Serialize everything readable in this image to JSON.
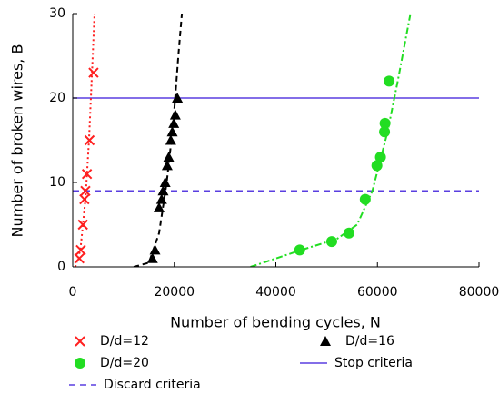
{
  "chart_data": {
    "type": "scatter",
    "xlabel": "Number of bending cycles, N",
    "ylabel": "Number of broken wires, B",
    "xlim": [
      0,
      80000
    ],
    "xticks": [
      0,
      20000,
      40000,
      60000,
      80000
    ],
    "ylim": [
      0,
      30
    ],
    "yticks": [
      0,
      10,
      20,
      30
    ],
    "grid": false,
    "series": [
      {
        "name": "D/d=12",
        "color": "#ff2020",
        "marker": "x",
        "x": [
          1300,
          1600,
          2000,
          2300,
          2500,
          2800,
          3300,
          4100
        ],
        "values": [
          1,
          2,
          5,
          8,
          9,
          11,
          15,
          23
        ]
      },
      {
        "name": "D/d=16",
        "color": "#000000",
        "marker": "triangle",
        "x": [
          15700,
          16200,
          17000,
          17500,
          17800,
          18200,
          18600,
          18900,
          19300,
          19600,
          19900,
          20200,
          20600
        ],
        "values": [
          1,
          2,
          7,
          8,
          9,
          10,
          12,
          13,
          15,
          16,
          17,
          18,
          20
        ]
      },
      {
        "name": "D/d=20",
        "color": "#22dd22",
        "marker": "circle",
        "x": [
          44700,
          51000,
          54400,
          57600,
          59900,
          60600,
          61400,
          61500,
          62300
        ],
        "values": [
          2,
          3,
          4,
          8,
          12,
          13,
          16,
          17,
          22
        ]
      }
    ],
    "fits": [
      {
        "color": "#ff2020",
        "dash": "2 3",
        "x": [
          500,
          1500,
          2500,
          3200,
          3800,
          4300
        ],
        "values": [
          0,
          2,
          8,
          15,
          23,
          30
        ]
      },
      {
        "color": "#000000",
        "dash": "6 4",
        "x": [
          12000,
          15000,
          17000,
          18500,
          19800,
          20800,
          21500
        ],
        "values": [
          0,
          0.5,
          4,
          10,
          17,
          25,
          30
        ]
      },
      {
        "color": "#22dd22",
        "dash": "7 3 2 3",
        "x": [
          35000,
          45000,
          52000,
          56000,
          59000,
          62000,
          64000,
          66500
        ],
        "values": [
          0,
          2,
          3.3,
          5,
          9,
          16,
          22,
          30
        ]
      }
    ],
    "hlines": [
      {
        "name": "Stop criteria",
        "value": 20,
        "color": "#5a3ee0",
        "dash": "none"
      },
      {
        "name": "Discard criteria",
        "value": 9,
        "color": "#5a3ee0",
        "dash": "7 5"
      }
    ]
  }
}
